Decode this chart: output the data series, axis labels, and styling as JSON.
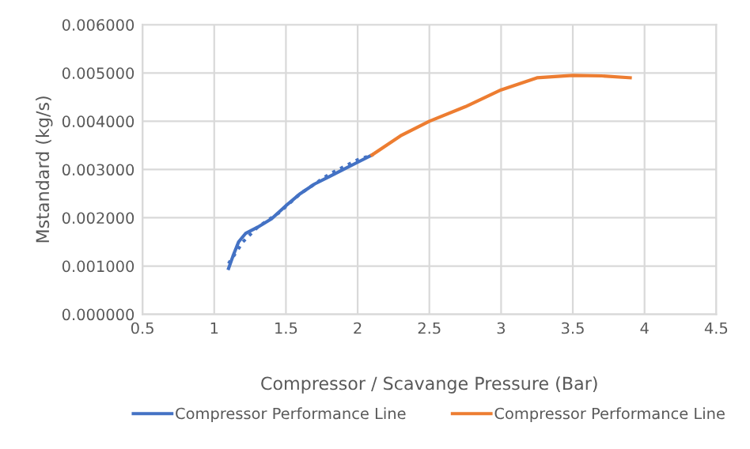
{
  "chart_data": {
    "type": "line",
    "xlabel": "Compressor / Scavange Pressure (Bar)",
    "ylabel": "Mstandard (kg/s)",
    "xlim": [
      0.5,
      4.5
    ],
    "xticks": [
      0.5,
      1,
      1.5,
      2,
      2.5,
      3,
      3.5,
      4,
      4.5
    ],
    "ylim": [
      0,
      0.006
    ],
    "yticks": [
      {
        "value": 0,
        "label": "0.000000"
      },
      {
        "value": 0.001,
        "label": "0.001000"
      },
      {
        "value": 0.002,
        "label": "0.002000"
      },
      {
        "value": 0.003,
        "label": "0.003000"
      },
      {
        "value": 0.004,
        "label": "0.004000"
      },
      {
        "value": 0.005,
        "label": "0.005000"
      },
      {
        "value": 0.006,
        "label": "0.006000"
      }
    ],
    "grid": true,
    "legend": "bottom",
    "marker": "none",
    "series": [
      {
        "name": "Compressor Performance Line",
        "color": "#4472c4",
        "line_style": "solid",
        "x": [
          1.1,
          1.13,
          1.17,
          1.22,
          1.3,
          1.4,
          1.5,
          1.6,
          1.7,
          1.8,
          1.9,
          2.0,
          2.1
        ],
        "values": [
          0.00095,
          0.0012,
          0.0015,
          0.00168,
          0.0018,
          0.00198,
          0.00225,
          0.0025,
          0.0027,
          0.00285,
          0.003,
          0.00315,
          0.0033
        ]
      },
      {
        "color": "#4472c4",
        "line_style": "dotted",
        "x": [
          1.1,
          1.2,
          1.3,
          1.45,
          1.6,
          1.8,
          2.0,
          2.1
        ],
        "values": [
          0.00105,
          0.0015,
          0.0018,
          0.0021,
          0.0025,
          0.0029,
          0.0032,
          0.0033
        ]
      },
      {
        "name": "Compressor Performance Line",
        "color": "#ed7d31",
        "line_style": "solid",
        "x": [
          2.1,
          2.3,
          2.5,
          2.75,
          3.0,
          3.25,
          3.5,
          3.7,
          3.9
        ],
        "values": [
          0.0033,
          0.0037,
          0.004,
          0.0043,
          0.00465,
          0.0049,
          0.00495,
          0.00494,
          0.0049
        ]
      }
    ]
  }
}
